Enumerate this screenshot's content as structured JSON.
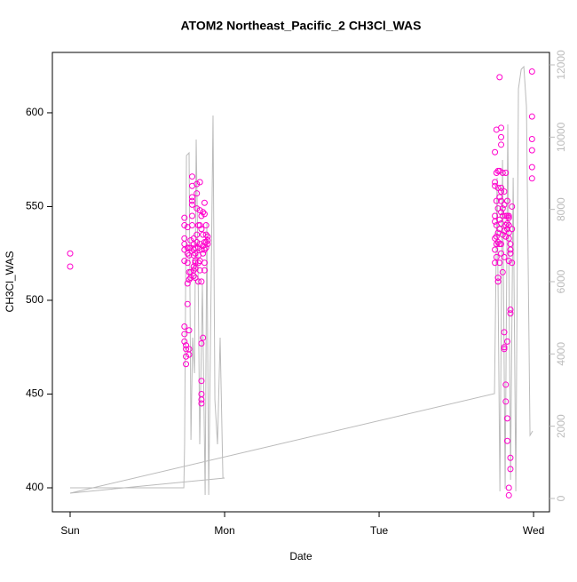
{
  "chart_data": {
    "type": "scatter",
    "title": "ATOM2 Northeast_Pacific_2 CH3Cl_WAS",
    "x_label": "Date",
    "y_label": "CH3Cl_WAS",
    "xlim": [
      -0.115,
      3.103
    ],
    "xticks": [
      {
        "value": 0,
        "label": "Sun"
      },
      {
        "value": 1,
        "label": "Mon"
      },
      {
        "value": 2,
        "label": "Tue"
      },
      {
        "value": 3,
        "label": "Wed"
      }
    ],
    "ylim": [
      387.2,
      632.2
    ],
    "yticks": [
      400,
      450,
      500,
      550,
      600
    ],
    "y2lim": [
      -369,
      12344
    ],
    "y2ticks": [
      0,
      2000,
      4000,
      6000,
      8000,
      10000,
      12000
    ],
    "y2color": "#bbbbbb",
    "series": [
      {
        "type": "scatter",
        "color": "#ff00cc",
        "x": [
          0,
          0,
          0.74,
          0.74,
          0.74,
          0.74,
          0.74,
          0.74,
          0.74,
          0.74,
          0.74,
          0.75,
          0.75,
          0.75,
          0.75,
          0.76,
          0.76,
          0.76,
          0.76,
          0.76,
          0.76,
          0.77,
          0.77,
          0.77,
          0.77,
          0.77,
          0.77,
          0.77,
          0.78,
          0.78,
          0.78,
          0.78,
          0.79,
          0.79,
          0.79,
          0.79,
          0.79,
          0.79,
          0.79,
          0.8,
          0.8,
          0.8,
          0.8,
          0.8,
          0.8,
          0.8,
          0.81,
          0.81,
          0.81,
          0.81,
          0.81,
          0.81,
          0.82,
          0.82,
          0.82,
          0.82,
          0.82,
          0.83,
          0.83,
          0.83,
          0.83,
          0.83,
          0.84,
          0.84,
          0.84,
          0.84,
          0.84,
          0.84,
          0.85,
          0.85,
          0.85,
          0.85,
          0.85,
          0.85,
          0.85,
          0.85,
          0.85,
          0.86,
          0.86,
          0.86,
          0.86,
          0.86,
          0.87,
          0.87,
          0.87,
          0.87,
          0.87,
          0.87,
          0.88,
          0.88,
          0.88,
          0.88,
          0.89,
          0.89,
          0.89,
          2.75,
          2.75,
          2.75,
          2.75,
          2.75,
          2.75,
          2.75,
          2.75,
          2.76,
          2.76,
          2.76,
          2.76,
          2.76,
          2.76,
          2.76,
          2.77,
          2.77,
          2.77,
          2.77,
          2.77,
          2.77,
          2.77,
          2.78,
          2.78,
          2.78,
          2.78,
          2.78,
          2.78,
          2.78,
          2.79,
          2.79,
          2.79,
          2.79,
          2.79,
          2.79,
          2.79,
          2.79,
          2.79,
          2.79,
          2.8,
          2.8,
          2.8,
          2.8,
          2.8,
          2.81,
          2.81,
          2.81,
          2.81,
          2.81,
          2.81,
          2.81,
          2.82,
          2.82,
          2.82,
          2.82,
          2.82,
          2.82,
          2.83,
          2.83,
          2.83,
          2.83,
          2.83,
          2.83,
          2.83,
          2.84,
          2.84,
          2.84,
          2.84,
          2.84,
          2.84,
          2.84,
          2.84,
          2.85,
          2.85,
          2.85,
          2.85,
          2.85,
          2.85,
          2.85,
          2.86,
          2.86,
          2.86,
          2.99,
          2.99,
          2.99,
          2.99,
          2.99,
          2.99
        ],
        "values": [
          525,
          518,
          527,
          530,
          533,
          540,
          544,
          521,
          486,
          482,
          478,
          476,
          466,
          470,
          474,
          539,
          528,
          525,
          520,
          509,
          498,
          528,
          524,
          515,
          511,
          484,
          474,
          471,
          512,
          515,
          528,
          532,
          545,
          551,
          555,
          566,
          561,
          553,
          540,
          533,
          530,
          527,
          524,
          518,
          516,
          513,
          528,
          521,
          517,
          512,
          520,
          525,
          557,
          562,
          549,
          535,
          531,
          540,
          528,
          524,
          520,
          510,
          563,
          548,
          540,
          530,
          521,
          516,
          545,
          538,
          527,
          510,
          477,
          457,
          450,
          447,
          445,
          547,
          535,
          529,
          525,
          480,
          552,
          546,
          531,
          527,
          520,
          516,
          540,
          535,
          531,
          528,
          534,
          532,
          530,
          579,
          563,
          561,
          545,
          542,
          533,
          527,
          520,
          591,
          568,
          553,
          540,
          534,
          530,
          523,
          569,
          560,
          549,
          536,
          531,
          512,
          510,
          619,
          569,
          555,
          543,
          538,
          530,
          520,
          592,
          587,
          583,
          560,
          558,
          553,
          547,
          541,
          530,
          525,
          568,
          549,
          545,
          535,
          515,
          558,
          551,
          537,
          523,
          483,
          475,
          474,
          568,
          545,
          540,
          534,
          455,
          446,
          553,
          545,
          541,
          538,
          425,
          437,
          478,
          545,
          544,
          540,
          536,
          533,
          521,
          400,
          396,
          530,
          527,
          525,
          493,
          495,
          416,
          410,
          520,
          550,
          538,
          586,
          598,
          580,
          571,
          565,
          622
        ]
      },
      {
        "type": "line",
        "axis": "y2",
        "color": "#bbbbbb",
        "x": [
          0,
          0.736,
          0.741,
          0.753,
          0.77,
          0.782,
          0.793,
          0.805,
          0.816,
          0.828,
          0.839,
          0.856,
          0.874,
          0.885,
          0.897,
          0.914,
          0.925,
          0.937,
          0.954,
          0.971,
          0.989,
          1.0,
          0,
          2.747,
          2.764,
          2.782,
          2.799,
          2.816,
          2.833,
          2.851,
          2.868,
          2.885,
          2.902,
          2.92,
          2.937,
          2.954,
          2.977,
          2.994
        ],
        "values": [
          295,
          295,
          1500,
          9491,
          9565,
          1623,
          4451,
          3467,
          9934,
          6417,
          1500,
          5926,
          98,
          7647,
          98,
          6417,
          10598,
          2729,
          1500,
          4451,
          566,
          566,
          148,
          2901,
          8877,
          197,
          9368,
          270,
          10352,
          516,
          8877,
          197,
          11335,
          11876,
          11950,
          10844,
          1746,
          1869
        ]
      }
    ]
  }
}
